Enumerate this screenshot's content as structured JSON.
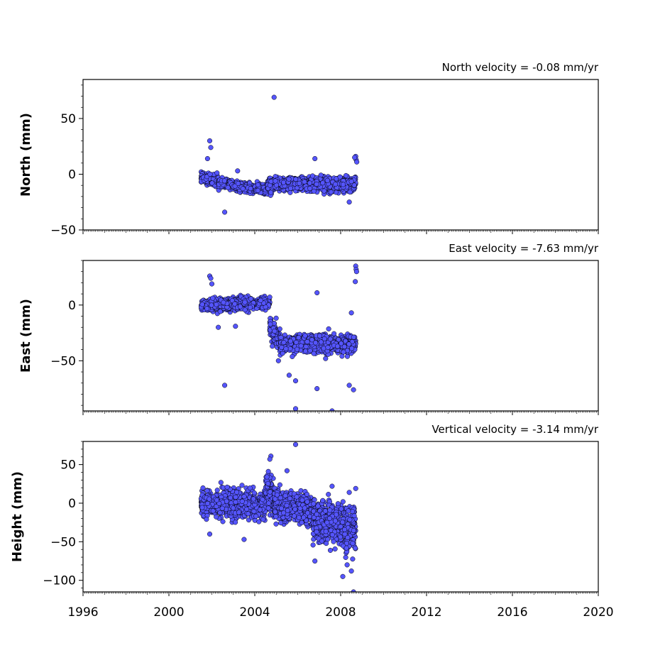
{
  "figure": {
    "x_ticks": [
      1996,
      2000,
      2004,
      2008,
      2012,
      2016,
      2020
    ]
  },
  "chart_data": [
    {
      "type": "scatter",
      "panel": "north",
      "title": "North velocity = -0.08 mm/yr",
      "xlabel": "",
      "ylabel": "North (mm)",
      "xlim": [
        1996,
        2020
      ],
      "ylim": [
        -50,
        85
      ],
      "yticks": [
        -50,
        0,
        50
      ],
      "marker_color": "#5555ff",
      "marker_edge": "#000000",
      "segments": [
        {
          "x0": 2001.5,
          "x1": 2002.3,
          "y0": -3,
          "y1": -6,
          "spread": 4
        },
        {
          "x0": 2002.3,
          "x1": 2004.0,
          "y0": -8,
          "y1": -13,
          "spread": 3
        },
        {
          "x0": 2004.0,
          "x1": 2004.6,
          "y0": -12,
          "y1": -14,
          "spread": 3
        },
        {
          "x0": 2004.6,
          "x1": 2008.7,
          "y0": -9,
          "y1": -9,
          "spread": 5
        }
      ],
      "outliers": [
        {
          "x": 2004.9,
          "y": 69
        },
        {
          "x": 2001.9,
          "y": 30
        },
        {
          "x": 2001.95,
          "y": 24
        },
        {
          "x": 2002.6,
          "y": -34
        },
        {
          "x": 2008.7,
          "y": 16
        },
        {
          "x": 2008.72,
          "y": 13
        },
        {
          "x": 2008.75,
          "y": 11
        },
        {
          "x": 2008.65,
          "y": 15
        },
        {
          "x": 2008.4,
          "y": -25
        },
        {
          "x": 2001.8,
          "y": 14
        },
        {
          "x": 2003.2,
          "y": 3
        },
        {
          "x": 2006.8,
          "y": 14
        }
      ]
    },
    {
      "type": "scatter",
      "panel": "east",
      "title": "East velocity = -7.63 mm/yr",
      "xlabel": "",
      "ylabel": "East (mm)",
      "xlim": [
        1996,
        2020
      ],
      "ylim": [
        -95,
        40
      ],
      "yticks": [
        -50,
        0
      ],
      "marker_color": "#5555ff",
      "marker_edge": "#000000",
      "segments": [
        {
          "x0": 2001.5,
          "x1": 2004.7,
          "y0": 0,
          "y1": 2,
          "spread": 4
        },
        {
          "x0": 2004.7,
          "x1": 2005.2,
          "y0": -20,
          "y1": -35,
          "spread": 8
        },
        {
          "x0": 2005.2,
          "x1": 2008.7,
          "y0": -35,
          "y1": -35,
          "spread": 6
        }
      ],
      "outliers": [
        {
          "x": 2001.9,
          "y": 26
        },
        {
          "x": 2001.95,
          "y": 24
        },
        {
          "x": 2002.0,
          "y": 19
        },
        {
          "x": 2002.6,
          "y": -72
        },
        {
          "x": 2002.3,
          "y": -20
        },
        {
          "x": 2003.1,
          "y": -19
        },
        {
          "x": 2005.6,
          "y": -63
        },
        {
          "x": 2005.9,
          "y": -68
        },
        {
          "x": 2005.9,
          "y": -93
        },
        {
          "x": 2006.9,
          "y": 11
        },
        {
          "x": 2006.9,
          "y": -75
        },
        {
          "x": 2007.6,
          "y": -95
        },
        {
          "x": 2008.4,
          "y": -72
        },
        {
          "x": 2008.6,
          "y": -76
        },
        {
          "x": 2008.5,
          "y": -7
        },
        {
          "x": 2008.7,
          "y": 35
        },
        {
          "x": 2008.72,
          "y": 32
        },
        {
          "x": 2008.74,
          "y": 30
        },
        {
          "x": 2008.68,
          "y": 21
        },
        {
          "x": 2005.1,
          "y": -50
        },
        {
          "x": 2007.3,
          "y": -48
        }
      ]
    },
    {
      "type": "scatter",
      "panel": "height",
      "title": "Vertical velocity = -3.14 mm/yr",
      "xlabel": "",
      "ylabel": "Height (mm)",
      "xlim": [
        1996,
        2020
      ],
      "ylim": [
        -115,
        80
      ],
      "yticks": [
        -100,
        -50,
        0,
        50
      ],
      "marker_color": "#5555ff",
      "marker_edge": "#000000",
      "segments": [
        {
          "x0": 2001.5,
          "x1": 2004.5,
          "y0": 0,
          "y1": -3,
          "spread": 14
        },
        {
          "x0": 2004.5,
          "x1": 2004.9,
          "y0": 25,
          "y1": 0,
          "spread": 18
        },
        {
          "x0": 2004.9,
          "x1": 2006.7,
          "y0": -2,
          "y1": -10,
          "spread": 16
        },
        {
          "x0": 2006.7,
          "x1": 2008.7,
          "y0": -20,
          "y1": -35,
          "spread": 22
        }
      ],
      "outliers": [
        {
          "x": 2004.75,
          "y": 61
        },
        {
          "x": 2004.7,
          "y": 57
        },
        {
          "x": 2005.9,
          "y": 76
        },
        {
          "x": 2005.5,
          "y": 42
        },
        {
          "x": 2008.1,
          "y": -95
        },
        {
          "x": 2008.6,
          "y": -115
        },
        {
          "x": 2008.5,
          "y": -88
        },
        {
          "x": 2006.8,
          "y": -75
        },
        {
          "x": 2008.3,
          "y": -80
        },
        {
          "x": 2007.6,
          "y": 22
        },
        {
          "x": 2008.4,
          "y": 14
        },
        {
          "x": 2008.7,
          "y": 19
        },
        {
          "x": 2001.9,
          "y": -40
        },
        {
          "x": 2003.5,
          "y": -47
        }
      ]
    }
  ]
}
